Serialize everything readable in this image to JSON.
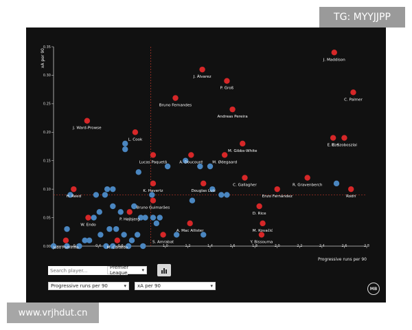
{
  "watermarks": {
    "top": "TG: MYYJJPP",
    "bottom": "www.vrjhdut.cn"
  },
  "controls": {
    "search_placeholder": "Search player...",
    "league": "Premier League",
    "x_metric": "Progressive runs per 90",
    "y_metric": "xA per 90",
    "chart_button_icon": "bar-chart-icon",
    "logo_icon": "mb-logo-icon",
    "logo_text": "MB"
  },
  "chart_data": {
    "type": "scatter",
    "xlabel": "Progressive runs per 90",
    "ylabel": "xA per 90",
    "xlim": [
      0,
      2.8
    ],
    "ylim": [
      0,
      0.35
    ],
    "xticks": [
      "0",
      "0.2",
      "0.4",
      "0.6",
      "0.8",
      "1.0",
      "1.2",
      "1.4",
      "1.6",
      "1.8",
      "2.0",
      "2.2",
      "2.4",
      "2.6",
      "2.8"
    ],
    "xtick_values": [
      0,
      0.2,
      0.4,
      0.6,
      0.8,
      1.0,
      1.2,
      1.4,
      1.6,
      1.8,
      2.0,
      2.2,
      2.4,
      2.6,
      2.8
    ],
    "yticks": [
      "0.00",
      "0.05",
      "0.10",
      "0.15",
      "0.20",
      "0.25",
      "0.30",
      "0.35"
    ],
    "ytick_values": [
      0,
      0.05,
      0.1,
      0.15,
      0.2,
      0.25,
      0.3,
      0.35
    ],
    "reference_lines": {
      "x": 0.87,
      "y": 0.09
    },
    "colors": {
      "highlight": "#d62728",
      "other": "#4a86c0",
      "guide": "#c0392b",
      "axis": "#cccccc"
    },
    "highlighted": [
      {
        "name": "J. Maddison",
        "x": 2.51,
        "y": 0.34
      },
      {
        "name": "C. Palmer",
        "x": 2.68,
        "y": 0.27
      },
      {
        "name": "J. Álvarez",
        "x": 1.33,
        "y": 0.31
      },
      {
        "name": "P. Groß",
        "x": 1.55,
        "y": 0.29
      },
      {
        "name": "Bruno Fernandes",
        "x": 1.09,
        "y": 0.26
      },
      {
        "name": "Andreas Pereira",
        "x": 1.6,
        "y": 0.24
      },
      {
        "name": "J. Ward-Prowse",
        "x": 0.3,
        "y": 0.22
      },
      {
        "name": "L. Cook",
        "x": 0.73,
        "y": 0.2
      },
      {
        "name": "E. Eze",
        "x": 2.5,
        "y": 0.19
      },
      {
        "name": "D. Szoboszlai",
        "x": 2.6,
        "y": 0.19
      },
      {
        "name": "M. Gibbs-White",
        "x": 1.69,
        "y": 0.18
      },
      {
        "name": "Lucas Paquetá",
        "x": 0.89,
        "y": 0.16
      },
      {
        "name": "A. Doucouré",
        "x": 1.23,
        "y": 0.16
      },
      {
        "name": "M. Ødegaard",
        "x": 1.53,
        "y": 0.16
      },
      {
        "name": "C. Gallagher",
        "x": 1.71,
        "y": 0.12
      },
      {
        "name": "R. Gravenberch",
        "x": 2.27,
        "y": 0.12
      },
      {
        "name": "K. Havertz",
        "x": 0.89,
        "y": 0.11
      },
      {
        "name": "Douglas Luiz",
        "x": 1.34,
        "y": 0.11
      },
      {
        "name": "H. Reed",
        "x": 0.18,
        "y": 0.1
      },
      {
        "name": "Enzo Fernández",
        "x": 2.0,
        "y": 0.1
      },
      {
        "name": "Rodri",
        "x": 2.66,
        "y": 0.1
      },
      {
        "name": "Bruno Guimarães",
        "x": 0.89,
        "y": 0.08
      },
      {
        "name": "D. Rice",
        "x": 1.84,
        "y": 0.07
      },
      {
        "name": "P. Højbjerg",
        "x": 0.68,
        "y": 0.06
      },
      {
        "name": "W. Endo",
        "x": 0.31,
        "y": 0.05
      },
      {
        "name": "M. Kovačić",
        "x": 1.87,
        "y": 0.04
      },
      {
        "name": "A. Mac Allister",
        "x": 1.22,
        "y": 0.04
      },
      {
        "name": "S. Amrabat",
        "x": 0.98,
        "y": 0.02
      },
      {
        "name": "Y. Bissouma",
        "x": 1.86,
        "y": 0.02
      },
      {
        "name": "João Palhinha",
        "x": 0.11,
        "y": 0.01
      },
      {
        "name": "M. Caicedo",
        "x": 0.57,
        "y": 0.01
      }
    ],
    "highlighted_label_pos": {
      "J. Maddison": "below",
      "C. Palmer": "below",
      "J. Álvarez": "below",
      "P. Groß": "below",
      "Bruno Fernandes": "below",
      "Andreas Pereira": "below",
      "J. Ward-Prowse": "below",
      "L. Cook": "below",
      "E. Eze": "below",
      "D. Szoboszlai": "below",
      "M. Gibbs-White": "below",
      "Lucas Paquetá": "below",
      "A. Doucouré": "below",
      "M. Ødegaard": "below",
      "C. Gallagher": "below",
      "R. Gravenberch": "below",
      "K. Havertz": "below",
      "Douglas Luiz": "below",
      "H. Reed": "below",
      "Enzo Fernández": "below",
      "Rodri": "below",
      "Bruno Guimarães": "below",
      "D. Rice": "below",
      "P. Højbjerg": "below",
      "W. Endo": "below",
      "M. Kovačić": "below",
      "A. Mac Allister": "below",
      "S. Amrabat": "below",
      "Y. Bissouma": "below",
      "João Palhinha": "below",
      "M. Caicedo": "below"
    },
    "others": [
      [
        0.64,
        0.18
      ],
      [
        0.64,
        0.17
      ],
      [
        0.76,
        0.13
      ],
      [
        1.02,
        0.14
      ],
      [
        1.18,
        0.15
      ],
      [
        1.31,
        0.14
      ],
      [
        1.4,
        0.14
      ],
      [
        0.48,
        0.1
      ],
      [
        0.53,
        0.1
      ],
      [
        0.15,
        0.09
      ],
      [
        0.38,
        0.09
      ],
      [
        0.46,
        0.09
      ],
      [
        0.88,
        0.09
      ],
      [
        1.24,
        0.08
      ],
      [
        1.42,
        0.1
      ],
      [
        1.5,
        0.09
      ],
      [
        1.55,
        0.09
      ],
      [
        2.53,
        0.11
      ],
      [
        0.53,
        0.07
      ],
      [
        0.6,
        0.06
      ],
      [
        0.72,
        0.07
      ],
      [
        0.78,
        0.05
      ],
      [
        0.82,
        0.05
      ],
      [
        0.89,
        0.05
      ],
      [
        0.95,
        0.05
      ],
      [
        0.92,
        0.04
      ],
      [
        0.41,
        0.06
      ],
      [
        0.36,
        0.05
      ],
      [
        0.5,
        0.03
      ],
      [
        0.56,
        0.03
      ],
      [
        0.42,
        0.02
      ],
      [
        0.28,
        0.01
      ],
      [
        0.32,
        0.01
      ],
      [
        0.12,
        0.03
      ],
      [
        0.63,
        0.02
      ],
      [
        0.7,
        0.01
      ],
      [
        0.75,
        0.02
      ],
      [
        1.1,
        0.02
      ],
      [
        1.34,
        0.02
      ],
      [
        0.0,
        0.0
      ],
      [
        0.12,
        0.0
      ],
      [
        0.23,
        0.0
      ],
      [
        0.47,
        0.0
      ],
      [
        0.53,
        0.0
      ],
      [
        0.67,
        0.0
      ],
      [
        0.8,
        0.0
      ]
    ]
  }
}
